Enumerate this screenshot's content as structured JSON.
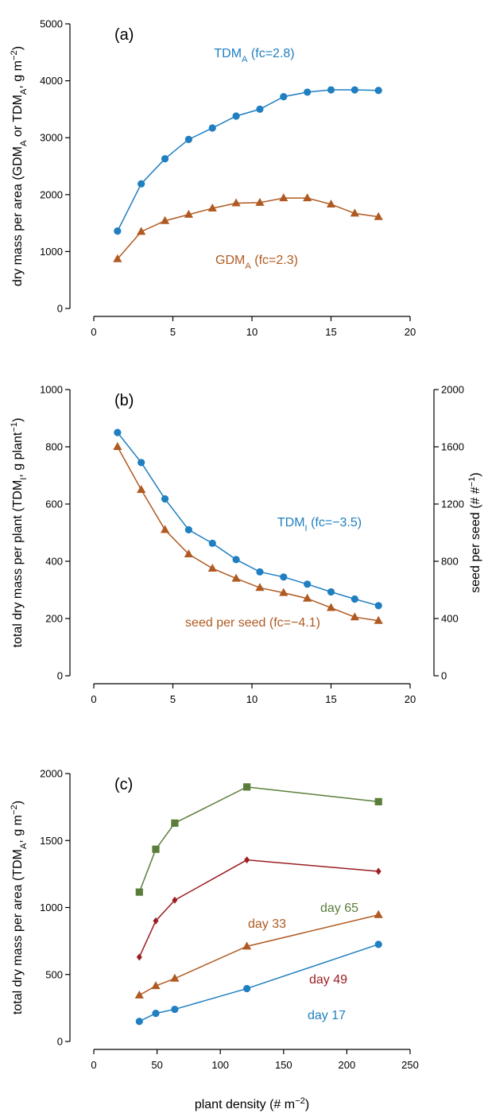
{
  "chart_data": [
    {
      "type": "line",
      "panel_label": "(a)",
      "ylabel": "dry mass per area (GDM_A or TDM_A, g m^-2)",
      "ylabel_parts": [
        "dry mass per area (GDM",
        "A",
        " or TDM",
        "A",
        ", g m",
        "−2",
        ")"
      ],
      "xlim": [
        0,
        20
      ],
      "ylim": [
        0,
        5000
      ],
      "xticks": [
        0,
        5,
        10,
        15,
        20
      ],
      "yticks": [
        0,
        1000,
        2000,
        3000,
        4000,
        5000
      ],
      "x": [
        1.5,
        3,
        4.5,
        6,
        7.5,
        9,
        10.5,
        12,
        13.5,
        15,
        16.5,
        18
      ],
      "series": [
        {
          "name": "TDM_A (fc=2.8)",
          "label_parts": [
            "TDM",
            "A",
            " (fc=2.8)"
          ],
          "color": "#1f7fc1",
          "marker": "circle",
          "values": [
            1360,
            2190,
            2630,
            2970,
            3170,
            3380,
            3500,
            3720,
            3800,
            3840,
            3840,
            3830
          ]
        },
        {
          "name": "GDM_A (fc=2.3)",
          "label_parts": [
            "GDM",
            "A",
            " (fc=2.3)"
          ],
          "color": "#b05a22",
          "marker": "triangle",
          "values": [
            870,
            1350,
            1540,
            1650,
            1760,
            1850,
            1860,
            1940,
            1940,
            1830,
            1670,
            1610
          ]
        }
      ]
    },
    {
      "type": "line",
      "panel_label": "(b)",
      "ylabel": "total dry mass per plant (TDM_I, g plant^-1)",
      "ylabel_parts": [
        "total dry mass per plant (TDM",
        "I",
        ", g plant",
        "−1",
        ")"
      ],
      "y2label": "seed per seed (# #^-1)",
      "y2label_parts": [
        "seed per seed (# #",
        "−1",
        ")"
      ],
      "xlim": [
        0,
        20
      ],
      "ylim": [
        0,
        1000
      ],
      "y2lim": [
        0,
        2000
      ],
      "xticks": [
        0,
        5,
        10,
        15,
        20
      ],
      "yticks": [
        0,
        200,
        400,
        600,
        800,
        1000
      ],
      "y2ticks": [
        0,
        400,
        800,
        1200,
        1600,
        2000
      ],
      "x": [
        1.5,
        3,
        4.5,
        6,
        7.5,
        9,
        10.5,
        12,
        13.5,
        15,
        16.5,
        18
      ],
      "series": [
        {
          "name": "TDM_I (fc=−3.5)",
          "label_parts": [
            "TDM",
            "I",
            " (fc=−3.5)"
          ],
          "color": "#1f7fc1",
          "marker": "circle",
          "axis": "left",
          "values": [
            850,
            745,
            618,
            510,
            463,
            406,
            363,
            345,
            320,
            293,
            268,
            245
          ]
        },
        {
          "name": "seed per seed (fc=−4.1)",
          "label_parts": [
            "seed per seed (fc=−4.1)",
            "",
            ""
          ],
          "color": "#b05a22",
          "marker": "triangle",
          "axis": "right",
          "values": [
            1600,
            1300,
            1020,
            850,
            750,
            680,
            615,
            580,
            540,
            475,
            410,
            385
          ]
        }
      ]
    },
    {
      "type": "line",
      "panel_label": "(c)",
      "ylabel": "total dry mass per area (TDM_A, g m^-2)",
      "ylabel_parts": [
        "total dry mass per area (TDM",
        "A",
        ", g m",
        "−2",
        ")"
      ],
      "xlabel": "plant density (# m^-2)",
      "xlabel_parts": [
        "plant density (# m",
        "−2",
        ")"
      ],
      "xlim": [
        0,
        250
      ],
      "ylim": [
        0,
        2000
      ],
      "xticks": [
        0,
        50,
        100,
        150,
        200,
        250
      ],
      "yticks": [
        0,
        500,
        1000,
        1500,
        2000
      ],
      "x": [
        36,
        49,
        64,
        121,
        225
      ],
      "series": [
        {
          "name": "day 65",
          "color": "#5a7e3a",
          "marker": "square",
          "values": [
            1115,
            1435,
            1630,
            1900,
            1790
          ]
        },
        {
          "name": "day 49",
          "color": "#9a1e22",
          "marker": "diamond",
          "values": [
            630,
            900,
            1055,
            1355,
            1270
          ]
        },
        {
          "name": "day 33",
          "color": "#b05a22",
          "marker": "triangle",
          "values": [
            345,
            415,
            470,
            710,
            945
          ]
        },
        {
          "name": "day 17",
          "color": "#1f7fc1",
          "marker": "circle",
          "values": [
            150,
            210,
            240,
            395,
            725
          ]
        }
      ]
    }
  ]
}
